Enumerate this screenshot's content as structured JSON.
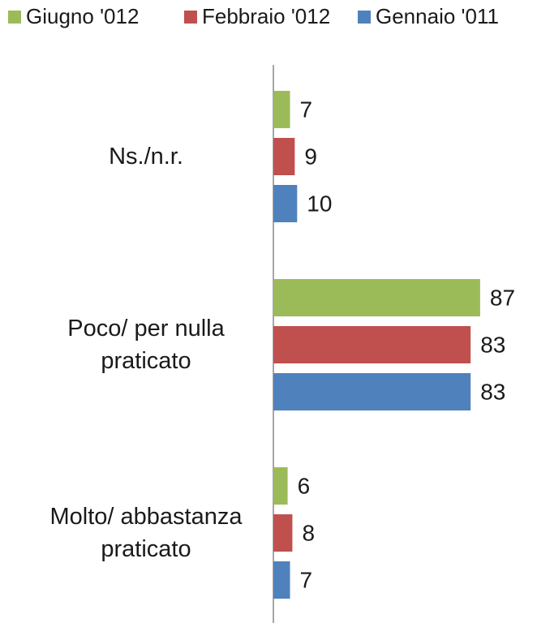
{
  "chart_data": {
    "type": "bar",
    "orientation": "horizontal",
    "categories": [
      "Ns./n.r.",
      "Poco/ per nulla praticato",
      "Molto/ abbastanza praticato"
    ],
    "series": [
      {
        "name": "Giugno '012",
        "color": "#9bbb59",
        "values": [
          7,
          87,
          6
        ]
      },
      {
        "name": "Febbraio '012",
        "color": "#c0504d",
        "values": [
          9,
          83,
          8
        ]
      },
      {
        "name": "Gennaio '011",
        "color": "#4f81bd",
        "values": [
          10,
          83,
          7
        ]
      }
    ],
    "legend": "top"
  }
}
